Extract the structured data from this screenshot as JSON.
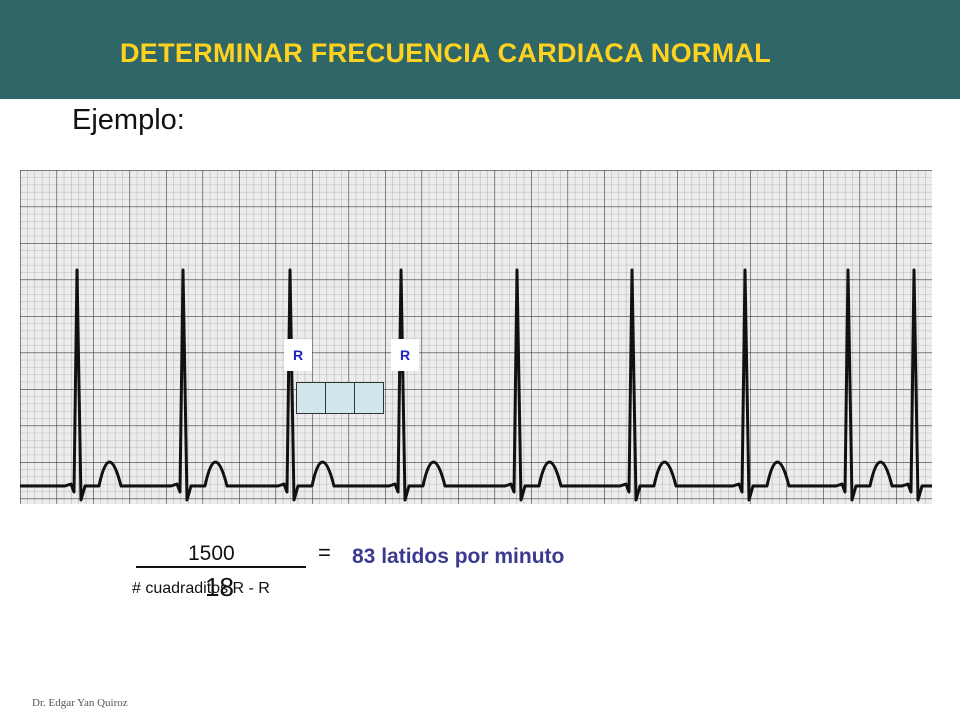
{
  "header": {
    "title": "DETERMINAR FRECUENCIA CARDIACA NORMAL",
    "background_color": "#2f6668",
    "title_color": "#ffd21f"
  },
  "subtitle": "Ejemplo:",
  "ecg": {
    "r_label_1": "R",
    "r_label_2": "R",
    "marker_color": "#1d22c8",
    "highlight_color": "#cfe6ea",
    "small_boxes_highlighted": 3
  },
  "formula": {
    "numerator": "1500",
    "equals": "=",
    "result": "83 latidos por minuto",
    "denominator_label": "# cuadraditos R - R",
    "denominator_value": "18",
    "result_color": "#3b3a8e"
  },
  "footer": "Dr. Edgar Yan Quiroz"
}
